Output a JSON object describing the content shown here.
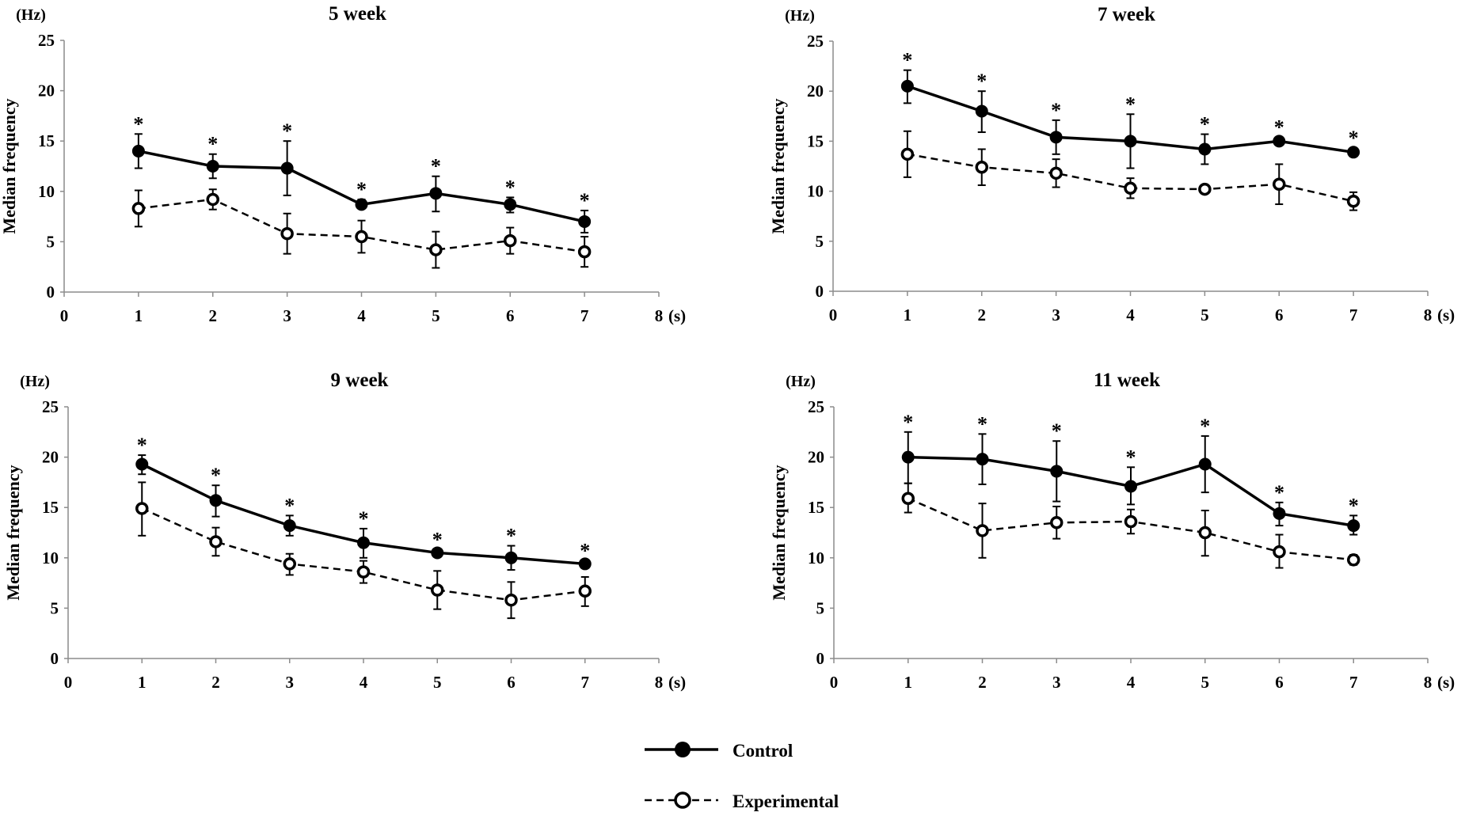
{
  "legend": {
    "control": "Control",
    "experimental": "Experimental"
  },
  "colors": {
    "line": "#000000",
    "axis": "#8c8c8c",
    "open_marker_fill": "#ffffff"
  },
  "chart_data": [
    {
      "type": "line",
      "title": "5 week",
      "ylabel": "Median frequency",
      "yunit": "(Hz)",
      "xunit": "(s)",
      "xlim": [
        0,
        8
      ],
      "ylim": [
        0,
        25
      ],
      "xticks": [
        "0",
        "1",
        "2",
        "3",
        "4",
        "5",
        "6",
        "7",
        "8"
      ],
      "yticks": [
        "0",
        "5",
        "10",
        "15",
        "20",
        "25"
      ],
      "x": [
        1,
        2,
        3,
        4,
        5,
        6,
        7
      ],
      "significance": [
        "*",
        "*",
        "*",
        "*",
        "*",
        "*",
        "*"
      ],
      "series": [
        {
          "name": "Control",
          "values": [
            14.0,
            12.5,
            12.3,
            8.7,
            9.8,
            8.7,
            7.0
          ],
          "err_low": [
            12.3,
            11.3,
            9.6,
            8.3,
            8.0,
            7.9,
            5.9
          ],
          "err_high": [
            15.7,
            13.7,
            15.0,
            9.2,
            11.5,
            9.4,
            8.1
          ]
        },
        {
          "name": "Experimental",
          "values": [
            8.3,
            9.2,
            5.8,
            5.5,
            4.2,
            5.1,
            4.0
          ],
          "err_low": [
            6.5,
            8.2,
            3.8,
            3.9,
            2.4,
            3.8,
            2.5
          ],
          "err_high": [
            10.1,
            10.2,
            7.8,
            7.1,
            6.0,
            6.4,
            5.5
          ]
        }
      ]
    },
    {
      "type": "line",
      "title": "7 week",
      "ylabel": "Median frequency",
      "yunit": "(Hz)",
      "xunit": "(s)",
      "xlim": [
        0,
        8
      ],
      "ylim": [
        0,
        25
      ],
      "xticks": [
        "0",
        "1",
        "2",
        "3",
        "4",
        "5",
        "6",
        "7",
        "8"
      ],
      "yticks": [
        "0",
        "5",
        "10",
        "15",
        "20",
        "25"
      ],
      "x": [
        1,
        2,
        3,
        4,
        5,
        6,
        7
      ],
      "significance": [
        "*",
        "*",
        "*",
        "*",
        "*",
        "*",
        "*"
      ],
      "series": [
        {
          "name": "Control",
          "values": [
            20.5,
            18.0,
            15.4,
            15.0,
            14.2,
            15.0,
            13.9
          ],
          "err_low": [
            18.8,
            15.9,
            13.7,
            12.3,
            12.7,
            14.6,
            13.5
          ],
          "err_high": [
            22.1,
            20.0,
            17.1,
            17.7,
            15.7,
            15.4,
            14.3
          ]
        },
        {
          "name": "Experimental",
          "values": [
            13.7,
            12.4,
            11.8,
            10.3,
            10.2,
            10.7,
            9.0
          ],
          "err_low": [
            11.4,
            10.6,
            10.4,
            9.3,
            10.0,
            8.7,
            8.1
          ],
          "err_high": [
            16.0,
            14.2,
            13.2,
            11.3,
            10.4,
            12.7,
            9.9
          ]
        }
      ]
    },
    {
      "type": "line",
      "title": "9 week",
      "ylabel": "Median frequency",
      "yunit": "(Hz)",
      "xunit": "(s)",
      "xlim": [
        0,
        8
      ],
      "ylim": [
        0,
        25
      ],
      "xticks": [
        "0",
        "1",
        "2",
        "3",
        "4",
        "5",
        "6",
        "7",
        "8"
      ],
      "yticks": [
        "0",
        "5",
        "10",
        "15",
        "20",
        "25"
      ],
      "x": [
        1,
        2,
        3,
        4,
        5,
        6,
        7
      ],
      "significance": [
        "*",
        "*",
        "*",
        "*",
        "*",
        "*",
        "*"
      ],
      "series": [
        {
          "name": "Control",
          "values": [
            19.3,
            15.7,
            13.2,
            11.5,
            10.5,
            10.0,
            9.4
          ],
          "err_low": [
            18.3,
            14.1,
            12.2,
            10.0,
            10.2,
            8.8,
            9.1
          ],
          "err_high": [
            20.2,
            17.2,
            14.2,
            12.9,
            10.8,
            11.2,
            9.7
          ]
        },
        {
          "name": "Experimental",
          "values": [
            14.9,
            11.6,
            9.4,
            8.6,
            6.8,
            5.8,
            6.7
          ],
          "err_low": [
            12.2,
            10.2,
            8.3,
            7.5,
            4.9,
            4.0,
            5.2
          ],
          "err_high": [
            17.5,
            13.0,
            10.4,
            9.7,
            8.7,
            7.6,
            8.1
          ]
        }
      ]
    },
    {
      "type": "line",
      "title": "11 week",
      "ylabel": "Median frequency",
      "yunit": "(Hz)",
      "xunit": "(s)",
      "xlim": [
        0,
        8
      ],
      "ylim": [
        0,
        25
      ],
      "xticks": [
        "0",
        "1",
        "2",
        "3",
        "4",
        "5",
        "6",
        "7",
        "8"
      ],
      "yticks": [
        "0",
        "5",
        "10",
        "15",
        "20",
        "25"
      ],
      "x": [
        1,
        2,
        3,
        4,
        5,
        6,
        7
      ],
      "significance": [
        "*",
        "*",
        "*",
        "*",
        "*",
        "*",
        "*"
      ],
      "series": [
        {
          "name": "Control",
          "values": [
            20.0,
            19.8,
            18.6,
            17.1,
            19.3,
            14.4,
            13.2
          ],
          "err_low": [
            17.4,
            17.3,
            15.6,
            15.3,
            16.5,
            13.2,
            12.3
          ],
          "err_high": [
            22.5,
            22.3,
            21.6,
            19.0,
            22.1,
            15.5,
            14.2
          ]
        },
        {
          "name": "Experimental",
          "values": [
            15.9,
            12.7,
            13.5,
            13.6,
            12.5,
            10.6,
            9.8
          ],
          "err_low": [
            14.5,
            10.0,
            11.9,
            12.4,
            10.2,
            9.0,
            9.3
          ],
          "err_high": [
            17.4,
            15.4,
            15.1,
            14.8,
            14.7,
            12.3,
            10.3
          ]
        }
      ]
    }
  ]
}
